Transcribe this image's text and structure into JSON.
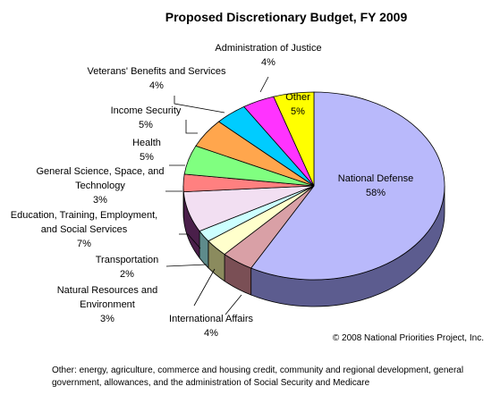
{
  "chart_data": {
    "type": "pie",
    "title": "Proposed Discretionary Budget, FY 2009",
    "slices": [
      {
        "lines": [
          "National Defense",
          "58%"
        ],
        "value": 58,
        "color": "#b9b9fb",
        "side": "#5c5c8f"
      },
      {
        "lines": [
          "International Affairs",
          "4%"
        ],
        "value": 4,
        "color": "#d9a0a6",
        "side": "#7a4f55"
      },
      {
        "lines": [
          "Natural Resources and",
          "Environment",
          "3%"
        ],
        "value": 3,
        "color": "#ffffcc",
        "side": "#8b8b5e"
      },
      {
        "lines": [
          "Transportation",
          "2%"
        ],
        "value": 2,
        "color": "#ccffff",
        "side": "#5e8b8b"
      },
      {
        "lines": [
          "Education, Training, Employment,",
          "and Social Services",
          "7%"
        ],
        "value": 7,
        "color": "#f2dff2",
        "side": "#4a1f4a"
      },
      {
        "lines": [
          "General Science, Space, and",
          "Technology",
          "3%"
        ],
        "value": 3,
        "color": "#ff8080",
        "side": "#8b4040"
      },
      {
        "lines": [
          "Health",
          "5%"
        ],
        "value": 5,
        "color": "#80ff80",
        "side": "#3f8b3f"
      },
      {
        "lines": [
          "Income Security",
          "5%"
        ],
        "value": 5,
        "color": "#ffa64d",
        "side": "#8b5a2a"
      },
      {
        "lines": [
          "Veterans' Benefits and Services",
          "4%"
        ],
        "value": 4,
        "color": "#00ccff",
        "side": "#006f8b"
      },
      {
        "lines": [
          "Administration of Justice",
          "4%"
        ],
        "value": 4,
        "color": "#ff33ff",
        "side": "#8b1c8b"
      },
      {
        "lines": [
          "Other",
          "5%"
        ],
        "value": 5,
        "color": "#ffff00",
        "side": "#8b8b00"
      }
    ]
  },
  "copyright": "© 2008 National Priorities Project, Inc.",
  "footnote": "Other: energy, agriculture, commerce and housing credit, community and regional development, general government, allowances, and the administration of Social Security and Medicare"
}
